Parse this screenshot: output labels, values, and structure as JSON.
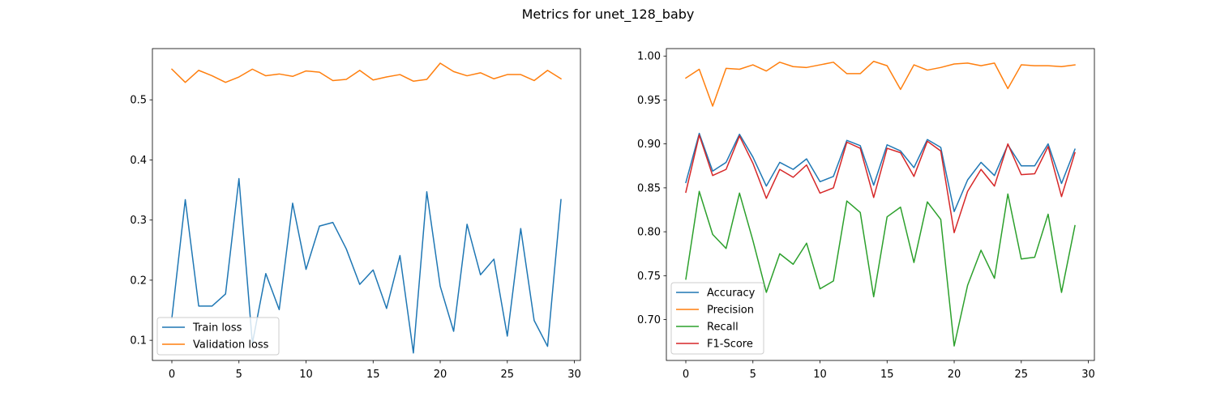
{
  "figure_title": "Metrics for unet_128_baby",
  "chart_data": [
    {
      "type": "line",
      "title": "",
      "xlabel": "",
      "ylabel": "",
      "xlim": [
        -1.45,
        30.45
      ],
      "ylim": [
        0.0665,
        0.5852
      ],
      "xticks": [
        0,
        5,
        10,
        15,
        20,
        25,
        30
      ],
      "yticks": [
        0.1,
        0.2,
        0.3,
        0.4,
        0.5
      ],
      "ytick_labels": [
        "0.1",
        "0.2",
        "0.3",
        "0.4",
        "0.5"
      ],
      "grid": false,
      "legend_position": "lower-left",
      "x": [
        0,
        1,
        2,
        3,
        4,
        5,
        6,
        7,
        8,
        9,
        10,
        11,
        12,
        13,
        14,
        15,
        16,
        17,
        18,
        19,
        20,
        21,
        22,
        23,
        24,
        25,
        26,
        27,
        28,
        29
      ],
      "series": [
        {
          "name": "Train loss",
          "color": "#1f77b4",
          "values": [
            0.137,
            0.334,
            0.157,
            0.157,
            0.177,
            0.369,
            0.095,
            0.211,
            0.151,
            0.328,
            0.218,
            0.29,
            0.296,
            0.252,
            0.193,
            0.217,
            0.153,
            0.241,
            0.079,
            0.347,
            0.19,
            0.115,
            0.293,
            0.209,
            0.235,
            0.107,
            0.286,
            0.133,
            0.09,
            0.334
          ]
        },
        {
          "name": "Validation loss",
          "color": "#ff7f0e",
          "values": [
            0.551,
            0.529,
            0.549,
            0.54,
            0.529,
            0.538,
            0.551,
            0.54,
            0.543,
            0.539,
            0.548,
            0.546,
            0.532,
            0.534,
            0.549,
            0.533,
            0.538,
            0.542,
            0.531,
            0.534,
            0.561,
            0.547,
            0.54,
            0.545,
            0.535,
            0.542,
            0.542,
            0.532,
            0.549,
            0.535
          ]
        }
      ]
    },
    {
      "type": "line",
      "title": "",
      "xlabel": "",
      "ylabel": "",
      "xlim": [
        -1.45,
        30.45
      ],
      "ylim": [
        0.6535,
        1.0085
      ],
      "xticks": [
        0,
        5,
        10,
        15,
        20,
        25,
        30
      ],
      "yticks": [
        0.7,
        0.75,
        0.8,
        0.85,
        0.9,
        0.95,
        1.0
      ],
      "ytick_labels": [
        "0.70",
        "0.75",
        "0.80",
        "0.85",
        "0.90",
        "0.95",
        "1.00"
      ],
      "grid": false,
      "legend_position": "lower-left",
      "x": [
        0,
        1,
        2,
        3,
        4,
        5,
        6,
        7,
        8,
        9,
        10,
        11,
        12,
        13,
        14,
        15,
        16,
        17,
        18,
        19,
        20,
        21,
        22,
        23,
        24,
        25,
        26,
        27,
        28,
        29
      ],
      "series": [
        {
          "name": "Accuracy",
          "color": "#1f77b4",
          "values": [
            0.856,
            0.912,
            0.869,
            0.879,
            0.911,
            0.885,
            0.852,
            0.879,
            0.871,
            0.883,
            0.857,
            0.863,
            0.904,
            0.898,
            0.853,
            0.899,
            0.892,
            0.873,
            0.905,
            0.896,
            0.823,
            0.859,
            0.879,
            0.864,
            0.899,
            0.875,
            0.875,
            0.9,
            0.855,
            0.894
          ]
        },
        {
          "name": "Precision",
          "color": "#ff7f0e",
          "values": [
            0.975,
            0.985,
            0.943,
            0.986,
            0.985,
            0.99,
            0.983,
            0.993,
            0.988,
            0.987,
            0.99,
            0.993,
            0.98,
            0.98,
            0.994,
            0.989,
            0.962,
            0.99,
            0.984,
            0.987,
            0.991,
            0.992,
            0.989,
            0.992,
            0.963,
            0.99,
            0.989,
            0.989,
            0.988,
            0.99
          ]
        },
        {
          "name": "Recall",
          "color": "#2ca02c",
          "values": [
            0.746,
            0.846,
            0.797,
            0.781,
            0.844,
            0.79,
            0.731,
            0.775,
            0.763,
            0.787,
            0.735,
            0.744,
            0.835,
            0.822,
            0.726,
            0.817,
            0.828,
            0.765,
            0.834,
            0.814,
            0.67,
            0.739,
            0.779,
            0.747,
            0.843,
            0.769,
            0.771,
            0.82,
            0.731,
            0.807
          ]
        },
        {
          "name": "F1-Score",
          "color": "#d62728",
          "values": [
            0.845,
            0.91,
            0.864,
            0.871,
            0.909,
            0.878,
            0.838,
            0.871,
            0.862,
            0.876,
            0.844,
            0.85,
            0.902,
            0.895,
            0.839,
            0.895,
            0.89,
            0.863,
            0.903,
            0.892,
            0.799,
            0.846,
            0.871,
            0.852,
            0.9,
            0.865,
            0.866,
            0.897,
            0.84,
            0.89
          ]
        }
      ]
    }
  ]
}
